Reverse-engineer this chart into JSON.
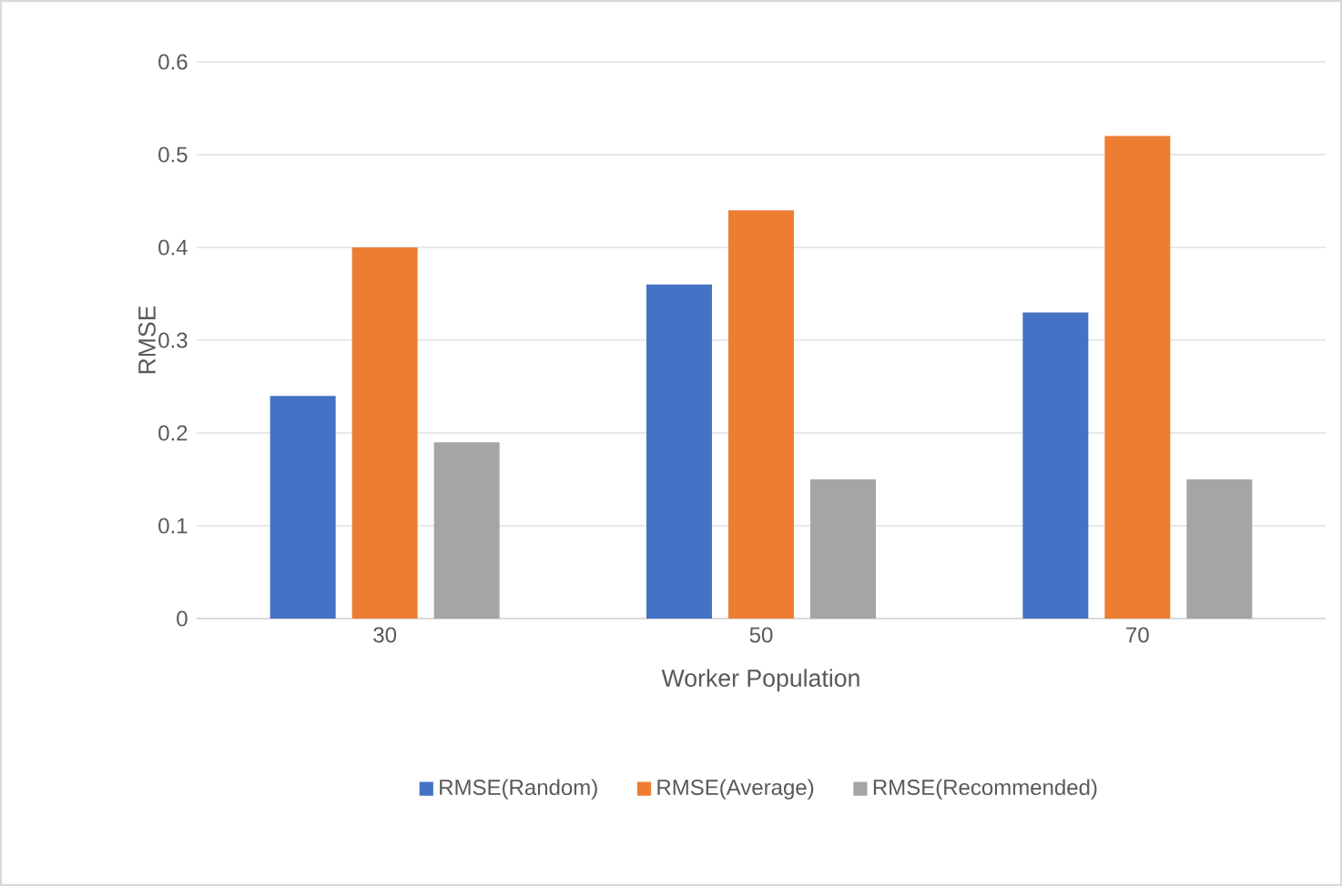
{
  "chart_data": {
    "type": "bar",
    "xlabel": "Worker Population",
    "ylabel": "RMSE",
    "categories": [
      "30",
      "50",
      "70"
    ],
    "series": [
      {
        "name": "RMSE(Random)",
        "color": "#4472c4",
        "values": [
          0.24,
          0.36,
          0.33
        ]
      },
      {
        "name": "RMSE(Average)",
        "color": "#ed7d31",
        "values": [
          0.4,
          0.44,
          0.52
        ]
      },
      {
        "name": "RMSE(Recommended)",
        "color": "#a5a5a5",
        "values": [
          0.19,
          0.15,
          0.15
        ]
      }
    ],
    "ylim": [
      0,
      0.6
    ],
    "yticks": [
      0,
      0.1,
      0.2,
      0.3,
      0.4,
      0.5,
      0.6
    ],
    "grid": "y",
    "legend": "bottom"
  }
}
